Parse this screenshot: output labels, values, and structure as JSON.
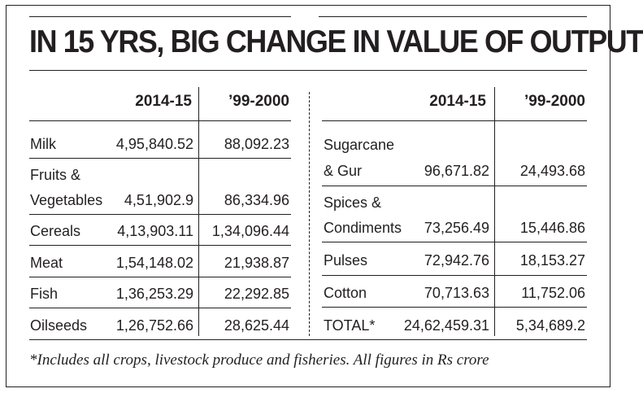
{
  "title": "IN 15 YRS, BIG CHANGE IN VALUE OF OUTPUT",
  "left_table": {
    "headers": [
      "2014-15",
      "’99-2000"
    ],
    "rows": [
      {
        "label_lines": [
          "Milk"
        ],
        "v2014": "4,95,840.52",
        "v1999": "88,092.23"
      },
      {
        "label_lines": [
          "Fruits &",
          "Vegetables"
        ],
        "v2014": "4,51,902.9",
        "v1999": "86,334.96"
      },
      {
        "label_lines": [
          "Cereals"
        ],
        "v2014": "4,13,903.11",
        "v1999": "1,34,096.44"
      },
      {
        "label_lines": [
          "Meat"
        ],
        "v2014": "1,54,148.02",
        "v1999": "21,938.87"
      },
      {
        "label_lines": [
          "Fish"
        ],
        "v2014": "1,36,253.29",
        "v1999": "22,292.85"
      },
      {
        "label_lines": [
          "Oilseeds"
        ],
        "v2014": "1,26,752.66",
        "v1999": "28,625.44"
      }
    ]
  },
  "right_table": {
    "headers": [
      "2014-15",
      "’99-2000"
    ],
    "rows": [
      {
        "label_lines": [
          "Sugarcane",
          "& Gur"
        ],
        "v2014": "96,671.82",
        "v1999": "24,493.68"
      },
      {
        "label_lines": [
          "Spices &",
          "Condiments"
        ],
        "v2014": "73,256.49",
        "v1999": "15,446.86"
      },
      {
        "label_lines": [
          "Pulses"
        ],
        "v2014": "72,942.76",
        "v1999": "18,153.27"
      },
      {
        "label_lines": [
          "Cotton"
        ],
        "v2014": "70,713.63",
        "v1999": "11,752.06"
      },
      {
        "label_lines": [
          "TOTAL*"
        ],
        "v2014": "24,62,459.31",
        "v1999": "5,34,689.2"
      }
    ]
  },
  "footnote": "*Includes all crops, livestock produce and fisheries. All figures in Rs crore"
}
